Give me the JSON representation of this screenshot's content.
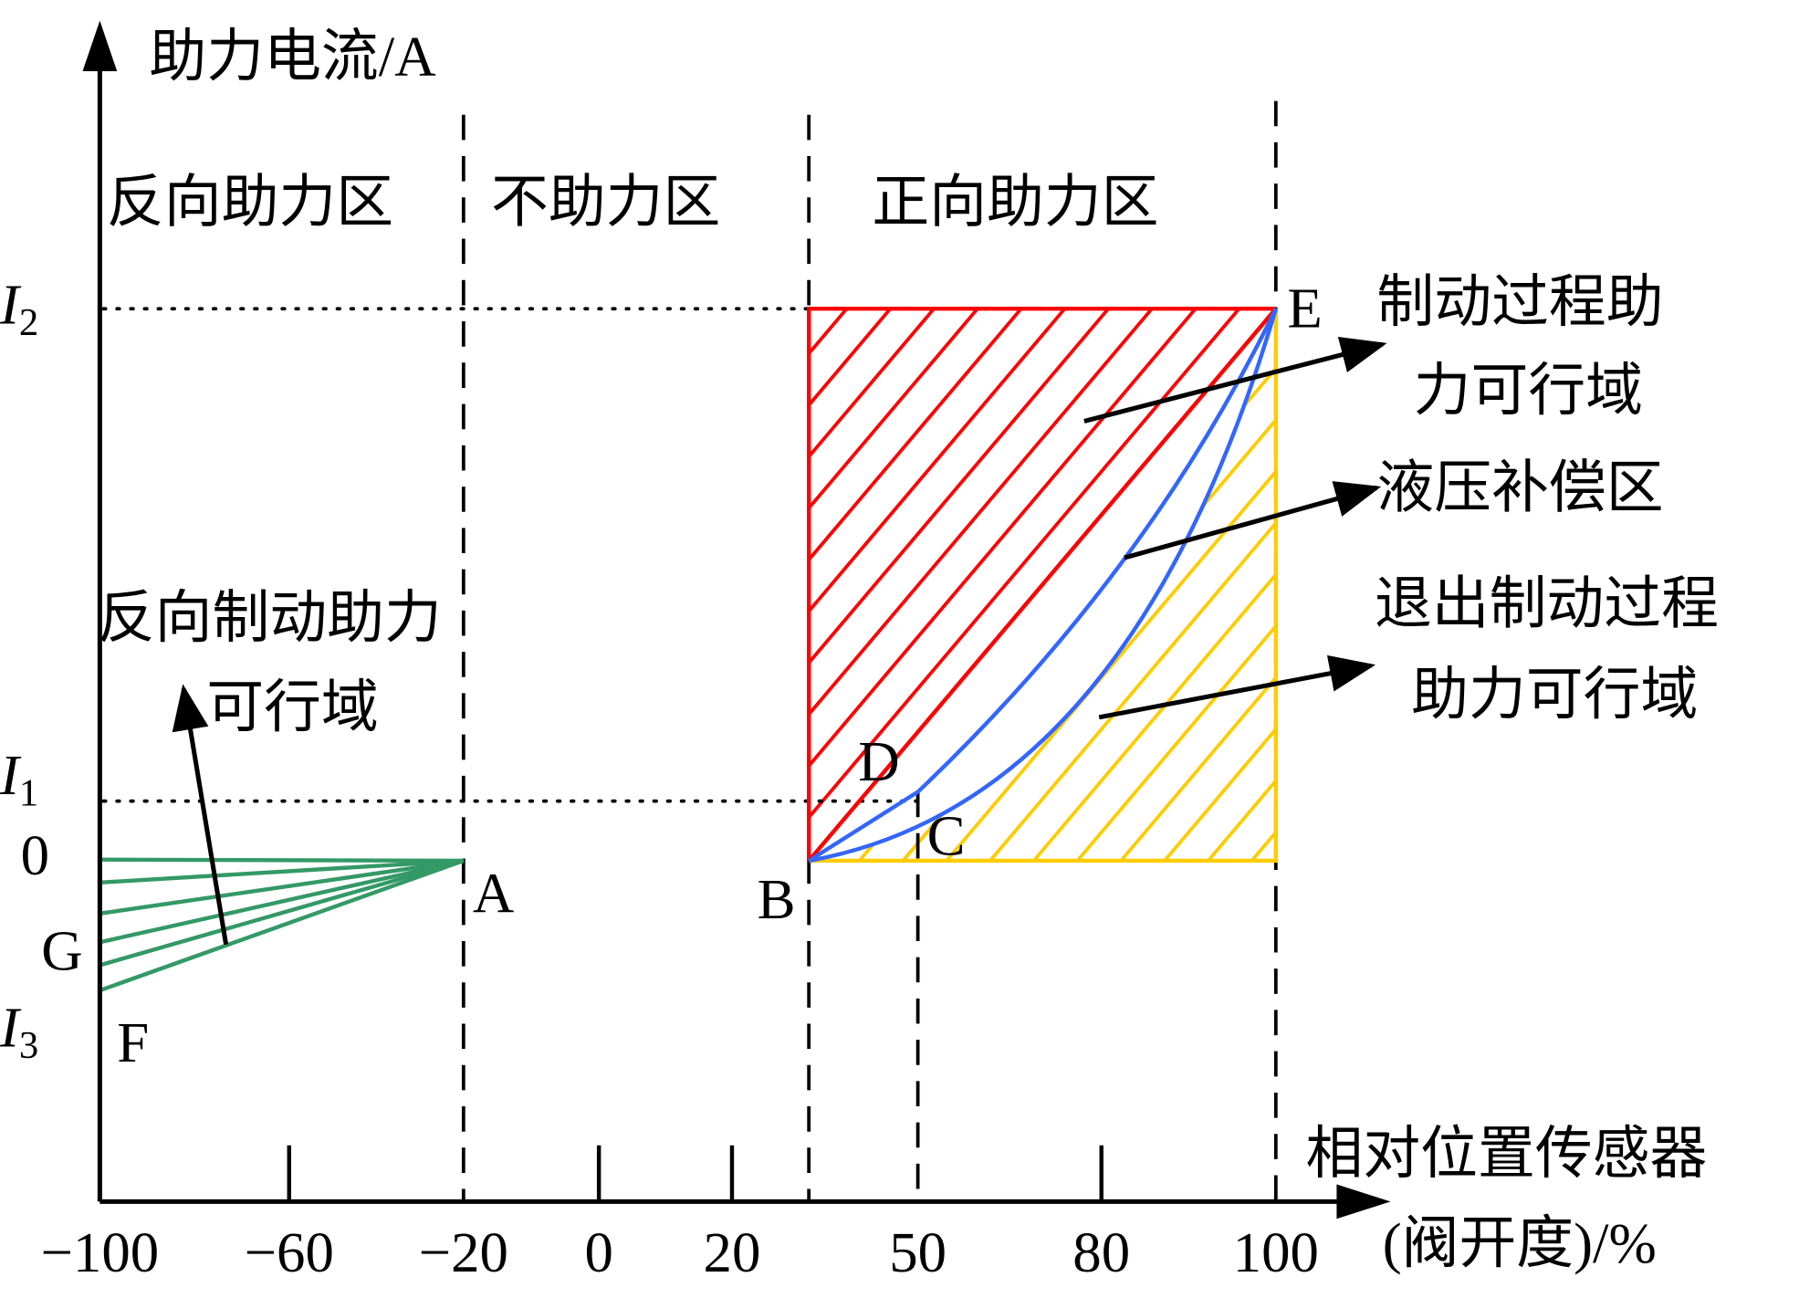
{
  "y_axis": {
    "label": "助力电流/A",
    "ticks": {
      "i2": "I",
      "i2_sub": "2",
      "i1": "I",
      "i1_sub": "1",
      "zero": "0",
      "i3": "I",
      "i3_sub": "3"
    }
  },
  "x_axis": {
    "label_line1": "相对位置传感器",
    "label_line2": "(阀开度)/%",
    "ticks": [
      "−100",
      "−60",
      "−20",
      "0",
      "20",
      "50",
      "80",
      "100"
    ]
  },
  "zones": {
    "reverse": "反向助力区",
    "none": "不助力区",
    "forward": "正向助力区"
  },
  "points": {
    "A": "A",
    "B": "B",
    "C": "C",
    "D": "D",
    "E": "E",
    "F": "F",
    "G": "G"
  },
  "annotations": {
    "reverse_brake_1": "反向制动助力",
    "reverse_brake_2": "可行域",
    "brake_1": "制动过程助",
    "brake_2": "力可行域",
    "hydraulic": "液压补偿区",
    "exit_1": "退出制动过程",
    "exit_2": "助力可行域"
  },
  "colors": {
    "brake_region": "#ff0000",
    "exit_region": "#ffcc00",
    "curve": "#3366ff",
    "reverse_region": "#339966",
    "axis": "#000000"
  }
}
